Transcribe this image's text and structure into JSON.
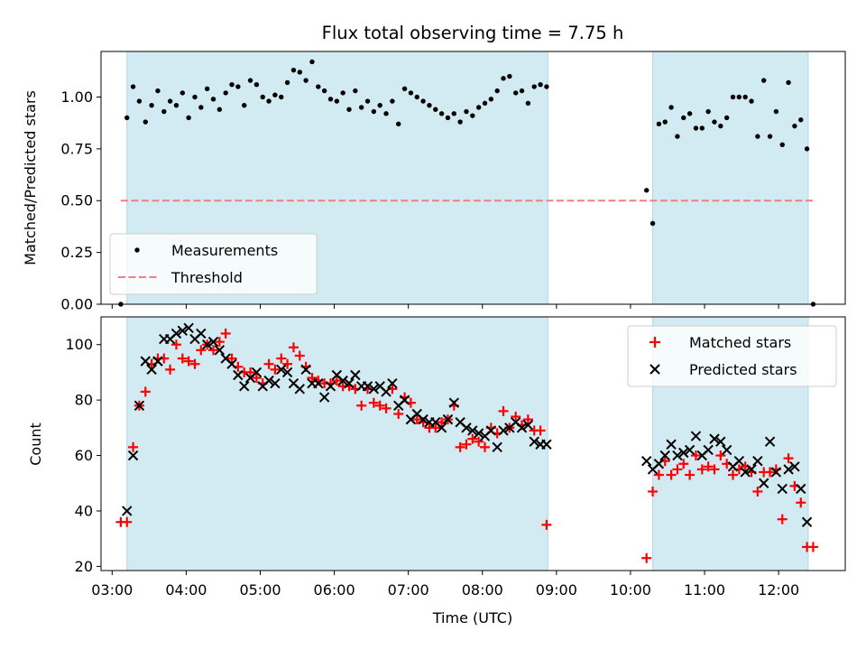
{
  "chart_data": [
    {
      "type": "scatter",
      "title": "Flux total observing time = 7.75 h",
      "ylabel": "Matched/Predicted stars",
      "xlim": [
        "02:51",
        "12:54"
      ],
      "ylim": [
        0,
        1.22
      ],
      "yticks": [
        0.0,
        0.25,
        0.5,
        0.75,
        1.0
      ],
      "yticklabels": [
        "0.00",
        "0.25",
        "0.50",
        "0.75",
        "1.00"
      ],
      "legend_position": "lower-left",
      "legend": [
        "Measurements",
        "Threshold"
      ],
      "shaded_spans": [
        [
          "03:12",
          "08:53"
        ],
        [
          "10:18",
          "12:24"
        ]
      ],
      "threshold": {
        "value": 0.5,
        "x_range": [
          "03:07",
          "12:29"
        ],
        "color": "#f08080"
      },
      "colors": {
        "span": "#add8e6",
        "points": "#000000"
      },
      "series": [
        {
          "name": "Measurements",
          "x": [
            "03:07",
            "03:12",
            "03:17",
            "03:22",
            "03:27",
            "03:32",
            "03:37",
            "03:42",
            "03:47",
            "03:52",
            "03:57",
            "04:02",
            "04:07",
            "04:12",
            "04:17",
            "04:22",
            "04:27",
            "04:32",
            "04:37",
            "04:42",
            "04:47",
            "04:52",
            "04:57",
            "05:02",
            "05:07",
            "05:12",
            "05:17",
            "05:22",
            "05:27",
            "05:32",
            "05:37",
            "05:42",
            "05:47",
            "05:52",
            "05:57",
            "06:02",
            "06:07",
            "06:12",
            "06:17",
            "06:22",
            "06:27",
            "06:32",
            "06:37",
            "06:42",
            "06:47",
            "06:52",
            "06:57",
            "07:02",
            "07:07",
            "07:12",
            "07:17",
            "07:22",
            "07:27",
            "07:32",
            "07:37",
            "07:42",
            "07:47",
            "07:52",
            "07:57",
            "08:02",
            "08:07",
            "08:12",
            "08:17",
            "08:22",
            "08:27",
            "08:32",
            "08:37",
            "08:42",
            "08:47",
            "08:52",
            "10:13",
            "10:18",
            "10:23",
            "10:28",
            "10:33",
            "10:38",
            "10:43",
            "10:48",
            "10:53",
            "10:58",
            "11:03",
            "11:08",
            "11:13",
            "11:18",
            "11:23",
            "11:28",
            "11:33",
            "11:38",
            "11:43",
            "11:48",
            "11:53",
            "11:58",
            "12:03",
            "12:08",
            "12:13",
            "12:18",
            "12:23",
            "12:28"
          ],
          "y": [
            0.0,
            0.9,
            1.05,
            0.98,
            0.88,
            0.96,
            1.03,
            0.93,
            0.98,
            0.96,
            1.02,
            0.9,
            1.0,
            0.95,
            1.04,
            0.99,
            0.94,
            1.02,
            1.06,
            1.05,
            0.96,
            1.08,
            1.06,
            1.0,
            0.98,
            1.01,
            1.0,
            1.07,
            1.13,
            1.12,
            1.08,
            1.17,
            1.05,
            1.03,
            0.99,
            0.98,
            1.02,
            0.94,
            1.03,
            0.95,
            0.98,
            0.93,
            0.96,
            0.92,
            0.98,
            0.87,
            1.04,
            1.02,
            1.0,
            0.98,
            0.96,
            0.94,
            0.92,
            0.9,
            0.92,
            0.88,
            0.93,
            0.91,
            0.95,
            0.97,
            0.99,
            1.03,
            1.09,
            1.1,
            1.02,
            1.03,
            0.97,
            1.05,
            1.06,
            1.05,
            0.55,
            0.39,
            0.87,
            0.88,
            0.95,
            0.81,
            0.9,
            0.92,
            0.85,
            0.85,
            0.93,
            0.88,
            0.86,
            0.9,
            1.0,
            1.0,
            1.0,
            0.98,
            0.81,
            1.08,
            0.81,
            0.93,
            0.77,
            1.07,
            0.86,
            0.89,
            0.75,
            0.0
          ]
        }
      ]
    },
    {
      "type": "scatter",
      "xlabel": "Time (UTC)",
      "ylabel": "Count",
      "xlim": [
        "02:51",
        "12:54"
      ],
      "ylim": [
        18.5,
        110
      ],
      "xticks": [
        "03:00",
        "04:00",
        "05:00",
        "06:00",
        "07:00",
        "08:00",
        "09:00",
        "10:00",
        "11:00",
        "12:00"
      ],
      "yticks": [
        20,
        40,
        60,
        80,
        100
      ],
      "yticklabels": [
        "20",
        "40",
        "60",
        "80",
        "100"
      ],
      "legend_position": "upper-right",
      "legend": [
        "Matched stars",
        "Predicted stars"
      ],
      "shaded_spans": [
        [
          "03:12",
          "08:53"
        ],
        [
          "10:18",
          "12:24"
        ]
      ],
      "colors": {
        "span": "#add8e6",
        "matched": "#ff0000",
        "predicted": "#000000"
      },
      "x": [
        "03:07",
        "03:12",
        "03:17",
        "03:22",
        "03:27",
        "03:32",
        "03:37",
        "03:42",
        "03:47",
        "03:52",
        "03:57",
        "04:02",
        "04:07",
        "04:12",
        "04:17",
        "04:22",
        "04:27",
        "04:32",
        "04:37",
        "04:42",
        "04:47",
        "04:52",
        "04:57",
        "05:02",
        "05:07",
        "05:12",
        "05:17",
        "05:22",
        "05:27",
        "05:32",
        "05:37",
        "05:42",
        "05:47",
        "05:52",
        "05:57",
        "06:02",
        "06:07",
        "06:12",
        "06:17",
        "06:22",
        "06:27",
        "06:32",
        "06:37",
        "06:42",
        "06:47",
        "06:52",
        "06:57",
        "07:02",
        "07:07",
        "07:12",
        "07:17",
        "07:22",
        "07:27",
        "07:32",
        "07:37",
        "07:42",
        "07:47",
        "07:52",
        "07:57",
        "08:02",
        "08:07",
        "08:12",
        "08:17",
        "08:22",
        "08:27",
        "08:32",
        "08:37",
        "08:42",
        "08:47",
        "08:52",
        "10:13",
        "10:18",
        "10:23",
        "10:28",
        "10:33",
        "10:38",
        "10:43",
        "10:48",
        "10:53",
        "10:58",
        "11:03",
        "11:08",
        "11:13",
        "11:18",
        "11:23",
        "11:28",
        "11:33",
        "11:38",
        "11:43",
        "11:48",
        "11:53",
        "11:58",
        "12:03",
        "12:08",
        "12:13",
        "12:18",
        "12:23",
        "12:28"
      ],
      "series": [
        {
          "name": "Matched stars",
          "marker": "plus",
          "y": [
            36,
            36,
            63,
            78,
            83,
            93,
            95,
            95,
            91,
            100,
            95,
            94,
            93,
            98,
            100,
            98,
            101,
            104,
            95,
            92,
            90,
            90,
            88,
            86,
            93,
            91,
            95,
            93,
            99,
            96,
            92,
            88,
            87,
            86,
            86,
            87,
            85,
            85,
            84,
            78,
            84,
            79,
            78,
            77,
            84,
            75,
            81,
            79,
            73,
            72,
            70,
            70,
            72,
            73,
            78,
            63,
            64,
            66,
            65,
            63,
            70,
            68,
            76,
            70,
            74,
            71,
            73,
            69,
            69,
            35,
            23,
            47,
            53,
            58,
            53,
            55,
            57,
            53,
            60,
            55,
            56,
            55,
            60,
            57,
            53,
            55,
            56,
            54,
            47,
            54,
            54,
            55,
            37,
            59,
            49,
            43,
            27,
            27
          ]
        },
        {
          "name": "Predicted stars",
          "marker": "x",
          "y": [
            null,
            40,
            60,
            78,
            94,
            91,
            94,
            102,
            102,
            104,
            105,
            106,
            102,
            104,
            100,
            101,
            98,
            95,
            93,
            89,
            85,
            88,
            90,
            85,
            87,
            86,
            91,
            90,
            86,
            84,
            91,
            86,
            86,
            81,
            85,
            89,
            87,
            86,
            89,
            85,
            85,
            84,
            85,
            83,
            86,
            78,
            80,
            73,
            75,
            73,
            72,
            72,
            70,
            73,
            79,
            72,
            70,
            69,
            68,
            67,
            69,
            63,
            69,
            70,
            72,
            70,
            71,
            65,
            64,
            64,
            58,
            55,
            57,
            60,
            64,
            60,
            61,
            62,
            67,
            60,
            62,
            66,
            65,
            62,
            56,
            58,
            54,
            55,
            58,
            50,
            65,
            54,
            48,
            55,
            56,
            48,
            36,
            null
          ]
        }
      ]
    }
  ]
}
